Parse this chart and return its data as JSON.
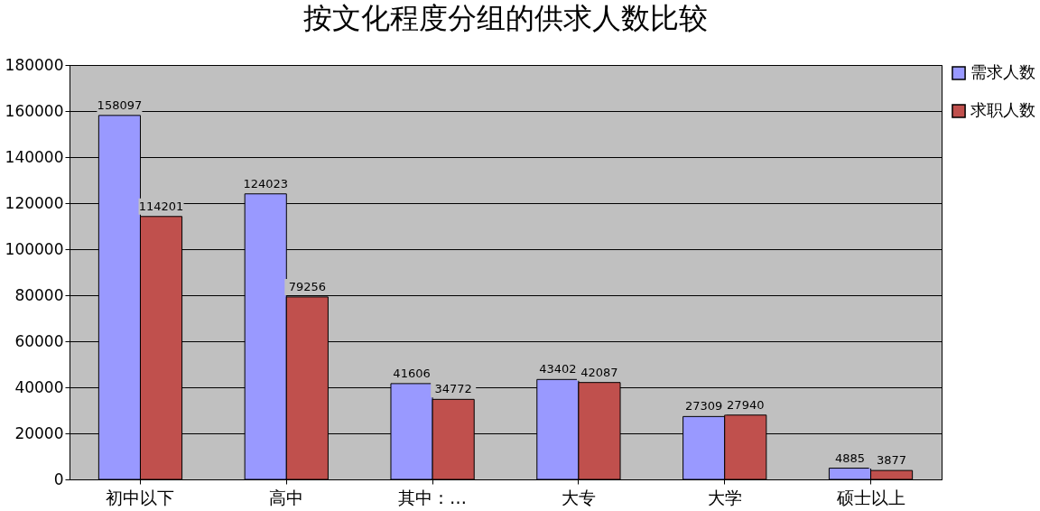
{
  "chart_data": {
    "type": "bar",
    "title": "按文化程度分组的供求人数比较",
    "categories": [
      "初中以下",
      "高中",
      "其中：…",
      "大专",
      "大学",
      "硕士以上"
    ],
    "series": [
      {
        "name": "需求人数",
        "color": "#9999ff",
        "values": [
          158097,
          124023,
          41606,
          43402,
          27309,
          4885
        ]
      },
      {
        "name": "求职人数",
        "color": "#c0504d",
        "values": [
          114201,
          79256,
          34772,
          42087,
          27940,
          3877
        ]
      }
    ],
    "ylim": [
      0,
      180000
    ],
    "yticks": [
      0,
      20000,
      40000,
      60000,
      80000,
      100000,
      120000,
      140000,
      160000,
      180000
    ],
    "grid": "y",
    "legend": "right",
    "data_labels": true
  }
}
